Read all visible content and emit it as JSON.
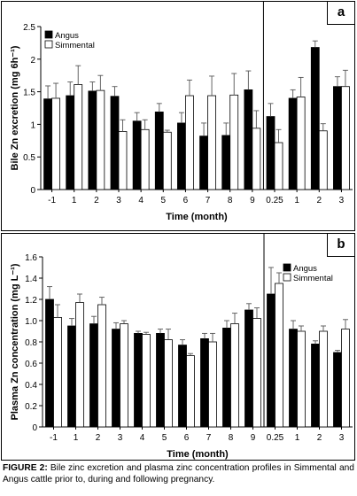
{
  "caption": {
    "label": "FIGURE 2:",
    "text": "Bile zinc excretion and plasma zinc concentration profiles in Simmental and Angus cattle prior to, during and following pregnancy."
  },
  "colors": {
    "angus": "#000000",
    "simmental": "#ffffff",
    "error_bars": "#555555"
  },
  "chart_data": [
    {
      "type": "bar",
      "panel_tag": "a",
      "ylabel": "Bile Zn excretion (mg 6h⁻¹)",
      "xlabel": "Time (month)",
      "categories": [
        "-1",
        "1",
        "2",
        "3",
        "4",
        "5",
        "6",
        "7",
        "8",
        "9",
        "0.25",
        "1",
        "2",
        "3"
      ],
      "divider_after_index": 9,
      "ylim": [
        0,
        2.5
      ],
      "yticks": [
        "0",
        "0.5",
        "1",
        "1.5",
        "2",
        "2.5"
      ],
      "legend": "top-left",
      "series": [
        {
          "name": "Angus",
          "values": [
            1.39,
            1.44,
            1.51,
            1.43,
            1.05,
            1.19,
            1.02,
            0.82,
            0.83,
            1.53,
            1.12,
            1.4,
            2.18,
            1.58
          ],
          "errors": [
            0.2,
            0.21,
            0.14,
            0.15,
            0.13,
            0.13,
            0.16,
            0.2,
            0.19,
            0.29,
            0.2,
            0.13,
            0.1,
            0.15
          ]
        },
        {
          "name": "Simmental",
          "values": [
            1.4,
            1.61,
            1.52,
            0.89,
            0.92,
            0.88,
            1.44,
            1.44,
            1.45,
            0.94,
            0.72,
            1.42,
            0.9,
            1.58
          ],
          "errors": [
            0.23,
            0.29,
            0.23,
            0.18,
            0.15,
            0.03,
            0.24,
            0.3,
            0.33,
            0.27,
            0.2,
            0.3,
            0.11,
            0.25
          ]
        }
      ]
    },
    {
      "type": "bar",
      "panel_tag": "b",
      "ylabel": "Plasma Zn concentration (mg L⁻¹)",
      "xlabel": "Time (month)",
      "categories": [
        "-1",
        "1",
        "2",
        "3",
        "4",
        "5",
        "6",
        "7",
        "8",
        "9",
        "0.25",
        "1",
        "2",
        "3"
      ],
      "divider_after_index": 9,
      "ylim": [
        0,
        1.6
      ],
      "yticks": [
        "0",
        "0.2",
        "0.4",
        "0.6",
        "0.8",
        "1.0",
        "1.2",
        "1.4",
        "1.6"
      ],
      "legend": "top-right",
      "series": [
        {
          "name": "Angus",
          "values": [
            1.2,
            0.95,
            0.97,
            0.92,
            0.88,
            0.88,
            0.77,
            0.83,
            0.93,
            1.1,
            1.25,
            0.92,
            0.78,
            0.7
          ],
          "errors": [
            0.12,
            0.07,
            0.07,
            0.06,
            0.02,
            0.04,
            0.05,
            0.05,
            0.07,
            0.06,
            0.25,
            0.08,
            0.03,
            0.02
          ]
        },
        {
          "name": "Simmental",
          "values": [
            1.03,
            1.17,
            1.15,
            0.97,
            0.87,
            0.82,
            0.67,
            0.8,
            0.97,
            1.02,
            1.35,
            0.9,
            0.9,
            0.92
          ],
          "errors": [
            0.12,
            0.08,
            0.07,
            0.03,
            0.02,
            0.1,
            0.02,
            0.08,
            0.1,
            0.1,
            0.1,
            0.05,
            0.05,
            0.09
          ]
        }
      ]
    }
  ]
}
